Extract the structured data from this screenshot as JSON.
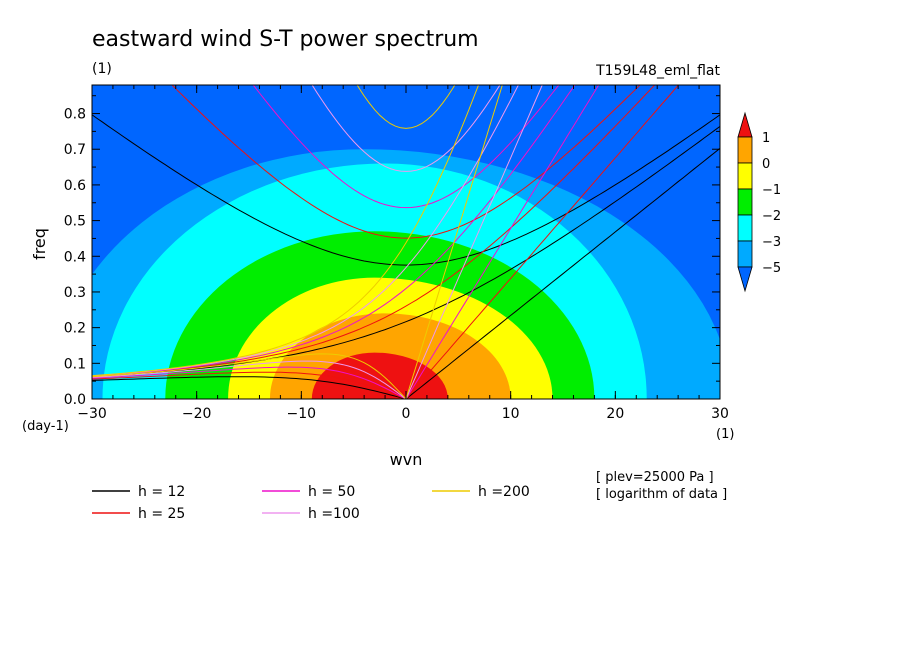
{
  "chart_data": {
    "type": "heatmap",
    "title": "eastward wind S-T power spectrum",
    "units_label": "(1)",
    "experiment": "T159L48_eml_flat",
    "xlabel": "wvn",
    "ylabel": "freq",
    "x_unit": "(1)",
    "y_unit": "(day-1)",
    "xlim": [
      -30,
      30
    ],
    "ylim": [
      0.0,
      0.88
    ],
    "xticks": [
      "-30",
      "-20",
      "-10",
      "0",
      "10",
      "20",
      "30"
    ],
    "yticks": [
      "0.0",
      "0.1",
      "0.2",
      "0.3",
      "0.4",
      "0.5",
      "0.6",
      "0.7",
      "0.8"
    ],
    "notes": [
      "[ plev=25000 Pa ]",
      "[ logarithm of data ]"
    ],
    "colorbar": {
      "levels": [
        "1",
        "0",
        "-1",
        "-2",
        "-3",
        "-5"
      ],
      "colors": [
        "#ee1111",
        "#ffa500",
        "#ffff00",
        "#00ee00",
        "#00ffff",
        "#00aaff",
        "#0066ff"
      ]
    },
    "contour_regions": [
      {
        "level": "-5",
        "color": "#0066ff",
        "region": "background"
      },
      {
        "level": "-3",
        "color": "#00aaff",
        "cx": -4,
        "cy": 0.0,
        "a_left": 30,
        "a_right": 35,
        "b": 0.7
      },
      {
        "level": "-3..-2",
        "color": "#00ffff",
        "cx": -2,
        "cy": 0.0,
        "a_left": 27,
        "a_right": 25,
        "b": 0.66
      },
      {
        "level": "-2..-1",
        "color": "#00ee00",
        "cx": -3,
        "cy": 0.0,
        "a_left": 20,
        "a_right": 21,
        "b": 0.47
      },
      {
        "level": "-1..0",
        "color": "#ffff00",
        "cx": -3,
        "cy": 0.0,
        "a_left": 14,
        "a_right": 17,
        "b": 0.34
      },
      {
        "level": "0..1",
        "color": "#ffa500",
        "cx": -2,
        "cy": 0.0,
        "a_left": 11,
        "a_right": 12,
        "b": 0.24
      },
      {
        "level": ">1",
        "color": "#ee1111",
        "cx": -3,
        "cy": 0.0,
        "a_left": 6,
        "a_right": 7,
        "b": 0.13
      }
    ],
    "series": [
      {
        "name": "h = 12",
        "color": "#000000",
        "h": 12
      },
      {
        "name": "h = 25",
        "color": "#ee1111",
        "h": 25
      },
      {
        "name": "h = 50",
        "color": "#ee11cc",
        "h": 50
      },
      {
        "name": "h =100",
        "color": "#ee99ee",
        "h": 100
      },
      {
        "name": "h =200",
        "color": "#eecc00",
        "h": 200
      }
    ]
  }
}
